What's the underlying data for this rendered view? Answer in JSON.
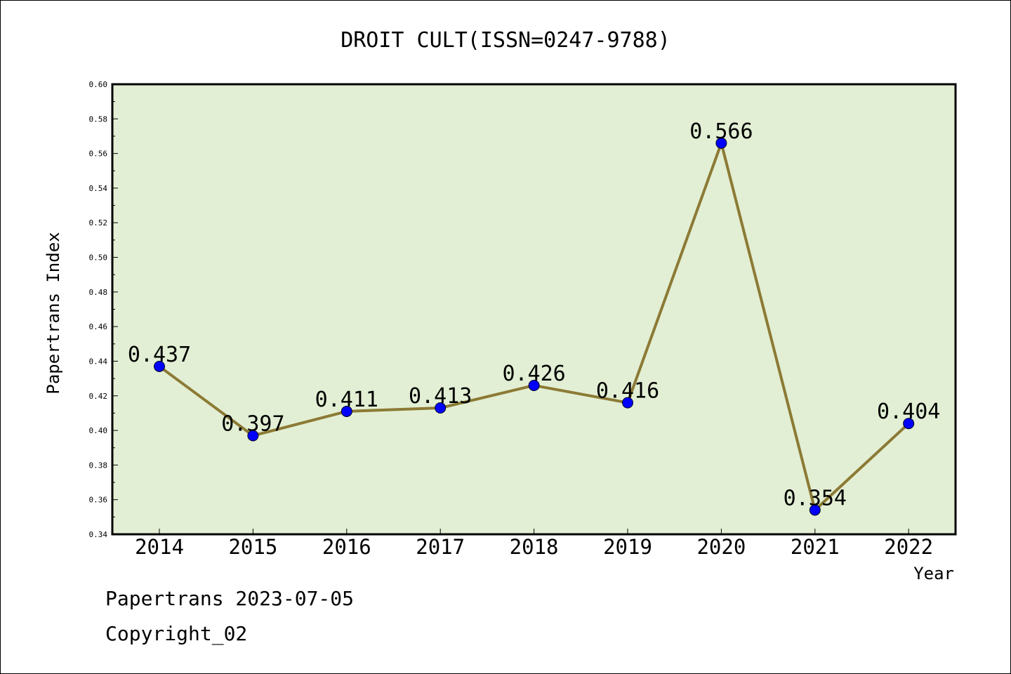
{
  "chart_data": {
    "type": "line",
    "title": "DROIT CULT(ISSN=0247-9788)",
    "xlabel": "Year",
    "ylabel": "Papertrans Index",
    "categories": [
      "2014",
      "2015",
      "2016",
      "2017",
      "2018",
      "2019",
      "2020",
      "2021",
      "2022"
    ],
    "values": [
      0.437,
      0.397,
      0.411,
      0.413,
      0.426,
      0.416,
      0.566,
      0.354,
      0.404
    ],
    "data_labels": [
      "0.437",
      "0.397",
      "0.411",
      "0.413",
      "0.426",
      "0.416",
      "0.566",
      "0.354",
      "0.404"
    ],
    "ylim": [
      0.34,
      0.6
    ],
    "y_ticks": [
      "0.34",
      "0.36",
      "0.38",
      "0.40",
      "0.42",
      "0.44",
      "0.46",
      "0.48",
      "0.50",
      "0.52",
      "0.54",
      "0.56",
      "0.58",
      "0.60"
    ],
    "grid": false,
    "colors": {
      "plot_background": "#e2efd4",
      "line": "#8c7a35",
      "marker": "#0000ff"
    }
  },
  "footer": {
    "date_line": "Papertrans 2023-07-05",
    "copyright_line": "Copyright_02"
  }
}
